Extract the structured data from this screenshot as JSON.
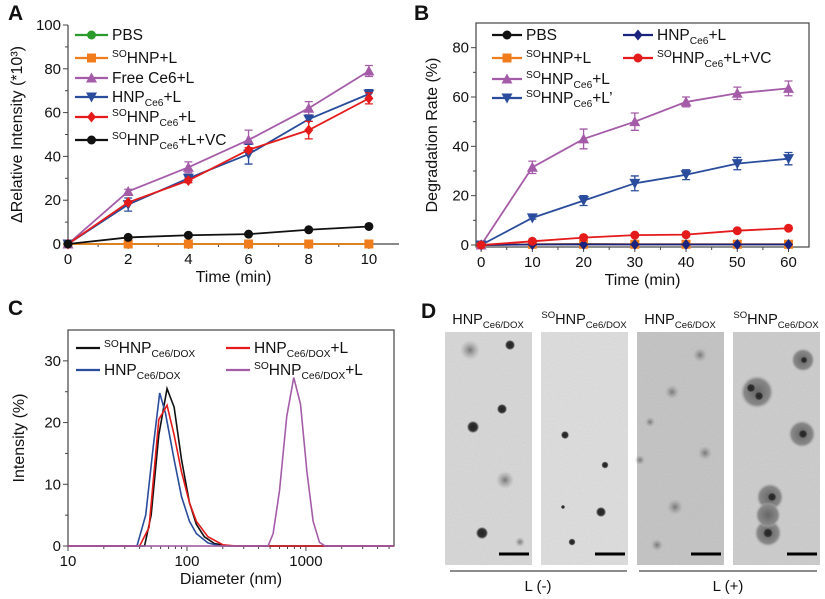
{
  "panel_labels": [
    "A",
    "B",
    "C",
    "D"
  ],
  "chart_data": [
    {
      "type": "line",
      "panel": "A",
      "xlabel": "Time (min)",
      "ylabel": "ΔRelative Intensity (*10³)",
      "xlim": [
        0,
        11
      ],
      "ylim": [
        0,
        100
      ],
      "xticks": [
        0,
        2,
        4,
        6,
        8,
        10
      ],
      "yticks": [
        0,
        20,
        40,
        60,
        80,
        100
      ],
      "legend_position": "top-left",
      "x": [
        0,
        2,
        4,
        6,
        8,
        10
      ],
      "series": [
        {
          "name": {
            "base": "PBS"
          },
          "color": "#2a9a2a",
          "marker": "circle",
          "values": [
            0,
            0,
            0,
            0,
            0,
            0
          ]
        },
        {
          "name": {
            "sup": "SO",
            "base": "HNP+L"
          },
          "color": "#f07c1c",
          "marker": "square",
          "values": [
            0,
            0,
            0,
            0,
            0,
            0
          ]
        },
        {
          "name": {
            "base": "Free Ce6+L"
          },
          "color": "#a55ca8",
          "marker": "triangle-up",
          "values": [
            0,
            24,
            35,
            47.5,
            62,
            79
          ],
          "errors": [
            0,
            1,
            2.5,
            4.5,
            3,
            2.5
          ]
        },
        {
          "name": {
            "base": "HNP",
            "sub": "Ce6",
            "tail": "+L"
          },
          "color": "#2a4c9c",
          "marker": "triangle-down",
          "values": [
            0,
            18,
            30,
            41,
            57,
            68.5
          ],
          "errors": [
            0,
            3,
            1,
            4.5,
            1,
            2
          ]
        },
        {
          "name": {
            "sup": "SO",
            "base": "HNP",
            "sub": "Ce6",
            "tail": "+L"
          },
          "color": "#e51a1a",
          "marker": "diamond",
          "values": [
            0,
            19,
            29,
            43,
            52,
            66.5
          ],
          "errors": [
            0,
            0.5,
            1,
            1,
            4,
            2.5
          ]
        },
        {
          "name": {
            "sup": "SO",
            "base": "HNP",
            "sub": "Ce6",
            "tail": "+L+VC"
          },
          "color": "#111111",
          "marker": "circle",
          "values": [
            0,
            3,
            4,
            4.5,
            6.5,
            8
          ]
        }
      ]
    },
    {
      "type": "line",
      "panel": "B",
      "xlabel": "Time (min)",
      "ylabel": "Degradation Rate (%)",
      "xlim": [
        -1,
        64
      ],
      "ylim": [
        0,
        90
      ],
      "xticks": [
        0,
        10,
        20,
        30,
        40,
        50,
        60
      ],
      "yticks": [
        0,
        20,
        40,
        60,
        80
      ],
      "legend_position": "top",
      "x": [
        0,
        10,
        20,
        30,
        40,
        50,
        60
      ],
      "series": [
        {
          "name": {
            "base": "PBS"
          },
          "color": "#111111",
          "marker": "circle",
          "values": [
            0,
            0.3,
            0.4,
            0.3,
            0.3,
            0.3,
            0.3
          ]
        },
        {
          "name": {
            "sup": "SO",
            "base": "HNP+L"
          },
          "color": "#f07c1c",
          "marker": "square",
          "values": [
            0,
            0.3,
            0.3,
            0.3,
            0.3,
            0.3,
            0.3
          ]
        },
        {
          "name": {
            "sup": "SO",
            "base": "HNP",
            "sub": "Ce6",
            "tail": "+L"
          },
          "color": "#a55ca8",
          "marker": "triangle-up",
          "values": [
            0,
            31.5,
            43,
            50,
            58,
            61.5,
            63.5
          ],
          "errors": [
            0,
            2.5,
            4,
            3.5,
            2,
            2.5,
            3
          ]
        },
        {
          "name": {
            "sup": "SO",
            "base": "HNP",
            "sub": "Ce6",
            "tail": "+L’"
          },
          "color": "#2a4c9c",
          "marker": "triangle-down",
          "values": [
            0,
            11,
            18,
            25,
            28.5,
            33,
            35
          ],
          "errors": [
            0,
            0.5,
            2,
            3,
            2,
            2.5,
            2.5
          ]
        },
        {
          "name": {
            "base": "HNP",
            "sub": "Ce6",
            "tail": "+L"
          },
          "color": "#1a237e",
          "marker": "diamond",
          "values": [
            0,
            0.2,
            0.2,
            0.2,
            0.2,
            0.2,
            0.2
          ]
        },
        {
          "name": {
            "sup": "SO",
            "base": "HNP",
            "sub": "Ce6",
            "tail": "+L+VC"
          },
          "color": "#e51a1a",
          "marker": "circle",
          "values": [
            0,
            1.5,
            3,
            4,
            4.2,
            5.8,
            6.8
          ]
        }
      ]
    },
    {
      "type": "line",
      "panel": "C",
      "xlabel": "Diameter (nm)",
      "ylabel": "Intensity (%)",
      "xscale": "log",
      "xlim": [
        10,
        5500
      ],
      "ylim": [
        0,
        35
      ],
      "xticks": [
        10,
        100,
        1000
      ],
      "yticks": [
        0,
        10,
        20,
        30
      ],
      "legend_position": "top",
      "series": [
        {
          "name": {
            "sup": "SO",
            "base": "HNP",
            "sub": "Ce6/DOX"
          },
          "color": "#111111",
          "x": [
            10,
            44,
            50,
            58,
            68,
            78,
            90,
            105,
            120,
            140,
            170,
            220,
            5500
          ],
          "values": [
            0,
            0,
            5,
            18,
            25.5,
            22.5,
            14,
            7,
            3.5,
            1.5,
            0.4,
            0,
            0
          ]
        },
        {
          "name": {
            "base": "HNP",
            "sub": "Ce6/DOX"
          },
          "color": "#2a4c9c",
          "x": [
            10,
            38,
            45,
            52,
            59,
            66,
            78,
            90,
            105,
            120,
            150,
            190,
            5500
          ],
          "values": [
            0,
            0,
            5,
            16,
            24.8,
            21.5,
            14,
            8,
            4,
            2,
            0.5,
            0,
            0
          ]
        },
        {
          "name": {
            "base": "HNP",
            "sub": "Ce6/DOX",
            "tail": "+L"
          },
          "color": "#e51a1a",
          "x": [
            10,
            40,
            48,
            58,
            68,
            78,
            90,
            105,
            120,
            150,
            200,
            260,
            5500
          ],
          "values": [
            0,
            0,
            3,
            20.5,
            22.8,
            18,
            12,
            7,
            4,
            1.5,
            0.2,
            0,
            0
          ]
        },
        {
          "name": {
            "sup": "SO",
            "base": "HNP",
            "sub": "Ce6/DOX",
            "tail": "+L"
          },
          "color": "#a55ca8",
          "x": [
            10,
            480,
            530,
            600,
            690,
            790,
            900,
            1020,
            1150,
            1300,
            1450,
            5500
          ],
          "values": [
            0,
            0,
            2,
            9,
            21,
            27.3,
            23,
            12,
            4,
            0.6,
            0,
            0
          ]
        }
      ]
    }
  ],
  "tem": {
    "titles": [
      {
        "base": "HNP",
        "sub": "Ce6/DOX"
      },
      {
        "sup": "SO",
        "base": "HNP",
        "sub": "Ce6/DOX"
      },
      {
        "base": "HNP",
        "sub": "Ce6/DOX"
      },
      {
        "sup": "SO",
        "base": "HNP",
        "sub": "Ce6/DOX"
      }
    ],
    "groups": [
      "L (-)",
      "L (+)"
    ]
  }
}
